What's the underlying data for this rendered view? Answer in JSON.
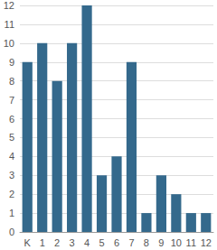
{
  "chart_data": {
    "type": "bar",
    "categories": [
      "K",
      "1",
      "2",
      "3",
      "4",
      "5",
      "6",
      "7",
      "8",
      "9",
      "10",
      "11",
      "12"
    ],
    "values": [
      9,
      10,
      8,
      10,
      12,
      3,
      4,
      9,
      1,
      3,
      2,
      1,
      1
    ],
    "color": "#34698c",
    "ylim": [
      0,
      12
    ],
    "yticks": [
      0,
      1,
      2,
      3,
      4,
      5,
      6,
      7,
      8,
      9,
      10,
      11,
      12
    ],
    "grid": true
  }
}
